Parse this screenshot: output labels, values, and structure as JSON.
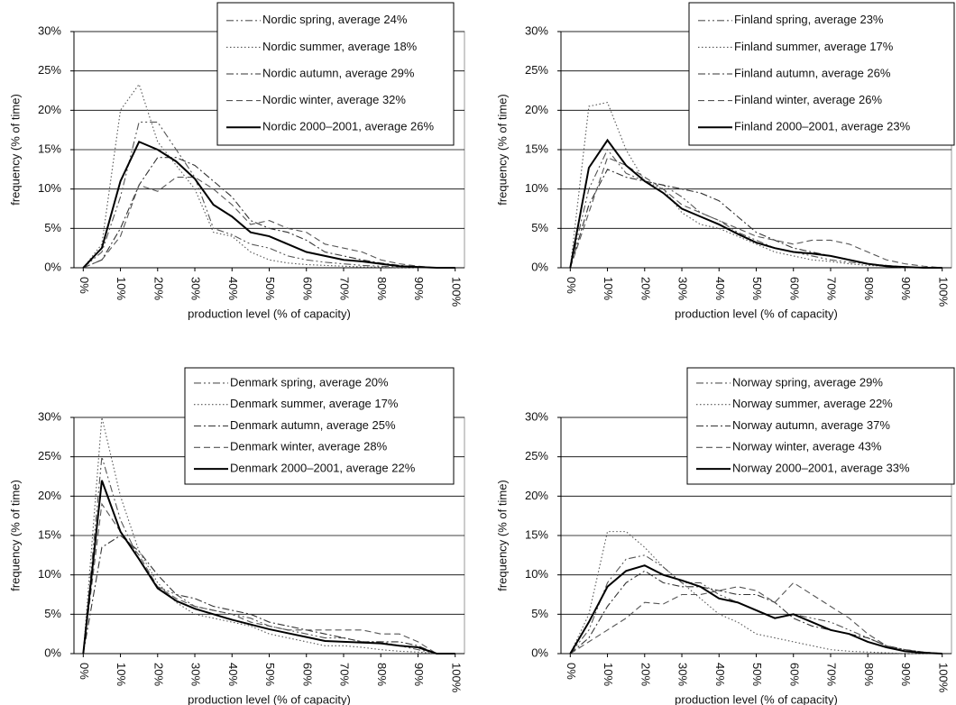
{
  "chart_data": [
    {
      "type": "line",
      "xlabel": "production level (% of capacity)",
      "ylabel": "frequency (% of time)",
      "x": [
        0,
        5,
        10,
        15,
        20,
        25,
        30,
        35,
        40,
        45,
        50,
        55,
        60,
        65,
        70,
        75,
        80,
        85,
        90,
        95,
        100
      ],
      "xlim": [
        -2.5,
        102.5
      ],
      "ylim": [
        0,
        30
      ],
      "grid": true,
      "legend": "upper right",
      "xticks": [
        {
          "value": 0,
          "label": "0%"
        },
        {
          "value": 10,
          "label": "10%"
        },
        {
          "value": 20,
          "label": "20%"
        },
        {
          "value": 30,
          "label": "30%"
        },
        {
          "value": 40,
          "label": "40%"
        },
        {
          "value": 50,
          "label": "50%"
        },
        {
          "value": 60,
          "label": "60%"
        },
        {
          "value": 70,
          "label": "70%"
        },
        {
          "value": 80,
          "label": "80%"
        },
        {
          "value": 90,
          "label": "90%"
        },
        {
          "value": 100,
          "label": "100%"
        }
      ],
      "yticks": [
        {
          "value": 0,
          "label": "0%"
        },
        {
          "value": 5,
          "label": "5%"
        },
        {
          "value": 10,
          "label": "10%"
        },
        {
          "value": 15,
          "label": "15%"
        },
        {
          "value": 20,
          "label": "20%"
        },
        {
          "value": 25,
          "label": "25%"
        },
        {
          "value": 30,
          "label": "30%"
        }
      ],
      "series": [
        {
          "name": "Nordic spring, average 24%",
          "color": "#555555",
          "linestyle": "dashdotdot",
          "values": [
            0,
            2,
            9,
            18.5,
            18.5,
            15,
            11.5,
            5,
            4.2,
            3,
            2.5,
            1.5,
            1,
            0.7,
            0.5,
            0.3,
            0.2,
            0.1,
            0,
            0,
            0
          ]
        },
        {
          "name": "Nordic summer, average 18%",
          "color": "#555555",
          "linestyle": "dotted",
          "values": [
            0,
            3,
            20,
            23.3,
            16,
            13,
            10,
            4.5,
            4,
            2,
            1,
            0.6,
            0.4,
            0.3,
            0.2,
            0.1,
            0.1,
            0,
            0,
            0,
            0
          ]
        },
        {
          "name": "Nordic autumn, average 29%",
          "color": "#333333",
          "linestyle": "dashdot",
          "values": [
            0,
            1,
            5,
            10.5,
            14,
            14,
            13,
            11,
            9,
            6,
            5,
            4.5,
            3.5,
            2,
            1.5,
            1,
            0.6,
            0.3,
            0.1,
            0,
            0
          ]
        },
        {
          "name": "Nordic winter, average 32%",
          "color": "#555555",
          "linestyle": "dashed",
          "values": [
            0,
            1,
            4,
            10.5,
            9.7,
            11.5,
            11.5,
            10,
            8,
            5.5,
            6,
            5,
            4.5,
            3,
            2.5,
            2,
            1,
            0.5,
            0.2,
            0,
            0
          ]
        },
        {
          "name": "Nordic 2000–2001, average 26%",
          "color": "#000000",
          "linestyle": "solid",
          "values": [
            0,
            2.5,
            11,
            16,
            15,
            13.5,
            11.3,
            8,
            6.5,
            4.5,
            4,
            3,
            2,
            1.5,
            1,
            0.8,
            0.5,
            0.2,
            0.1,
            0,
            0
          ]
        }
      ]
    },
    {
      "type": "line",
      "xlabel": "production level (% of capacity)",
      "ylabel": "frequency (% of time)",
      "x": [
        0,
        5,
        10,
        15,
        20,
        25,
        30,
        35,
        40,
        45,
        50,
        55,
        60,
        65,
        70,
        75,
        80,
        85,
        90,
        95,
        100
      ],
      "xlim": [
        -2.5,
        102.5
      ],
      "ylim": [
        0,
        30
      ],
      "grid": true,
      "legend": "upper right",
      "xticks": [
        {
          "value": 0,
          "label": "0%"
        },
        {
          "value": 10,
          "label": "10%"
        },
        {
          "value": 20,
          "label": "20%"
        },
        {
          "value": 30,
          "label": "30%"
        },
        {
          "value": 40,
          "label": "40%"
        },
        {
          "value": 50,
          "label": "50%"
        },
        {
          "value": 60,
          "label": "60%"
        },
        {
          "value": 70,
          "label": "70%"
        },
        {
          "value": 80,
          "label": "80%"
        },
        {
          "value": 90,
          "label": "90%"
        },
        {
          "value": 100,
          "label": "100%"
        }
      ],
      "yticks": [
        {
          "value": 0,
          "label": "0%"
        },
        {
          "value": 5,
          "label": "5%"
        },
        {
          "value": 10,
          "label": "10%"
        },
        {
          "value": 15,
          "label": "15%"
        },
        {
          "value": 20,
          "label": "20%"
        },
        {
          "value": 25,
          "label": "25%"
        },
        {
          "value": 30,
          "label": "30%"
        }
      ],
      "series": [
        {
          "name": "Finland spring, average 23%",
          "color": "#555555",
          "linestyle": "dashdotdot",
          "values": [
            0,
            10,
            15,
            12,
            11,
            10.5,
            9,
            7,
            6,
            4.5,
            3.5,
            2.5,
            2,
            1.5,
            1,
            0.7,
            0.5,
            0.3,
            0.1,
            0,
            0
          ]
        },
        {
          "name": "Finland summer, average 17%",
          "color": "#555555",
          "linestyle": "dotted",
          "values": [
            0,
            20.5,
            21,
            15,
            11,
            10,
            7,
            5.5,
            5,
            4,
            3,
            2,
            1.5,
            1,
            0.8,
            0.5,
            0.3,
            0.2,
            0,
            0,
            0
          ]
        },
        {
          "name": "Finland autumn, average 26%",
          "color": "#333333",
          "linestyle": "dashdot",
          "values": [
            0,
            8,
            12.5,
            11.5,
            11,
            10.5,
            10,
            9.5,
            8.5,
            6.5,
            4.5,
            3.5,
            2.5,
            2,
            1.5,
            1,
            0.5,
            0.3,
            0.1,
            0,
            0
          ]
        },
        {
          "name": "Finland winter, average 26%",
          "color": "#555555",
          "linestyle": "dashed",
          "values": [
            0,
            7,
            14,
            13,
            11.5,
            10,
            8,
            7,
            6,
            5,
            4,
            3.5,
            3,
            3.5,
            3.5,
            3,
            2,
            1,
            0.5,
            0.2,
            0
          ]
        },
        {
          "name": "Finland 2000–2001, average 23%",
          "color": "#000000",
          "linestyle": "solid",
          "values": [
            0,
            12.7,
            16.2,
            13,
            11,
            9.5,
            7.5,
            6.5,
            5.5,
            4.3,
            3.2,
            2.5,
            2,
            1.8,
            1.5,
            1,
            0.5,
            0.2,
            0.1,
            0,
            0
          ]
        }
      ]
    },
    {
      "type": "line",
      "xlabel": "production level (% of capacity)",
      "ylabel": "frequency (% of time)",
      "x": [
        0,
        5,
        10,
        15,
        20,
        25,
        30,
        35,
        40,
        45,
        50,
        55,
        60,
        65,
        70,
        75,
        80,
        85,
        90,
        95,
        100
      ],
      "xlim": [
        -2.5,
        102.5
      ],
      "ylim": [
        0,
        30
      ],
      "grid": true,
      "legend": "upper right",
      "xticks": [
        {
          "value": 0,
          "label": "0%"
        },
        {
          "value": 10,
          "label": "10%"
        },
        {
          "value": 20,
          "label": "20%"
        },
        {
          "value": 30,
          "label": "30%"
        },
        {
          "value": 40,
          "label": "40%"
        },
        {
          "value": 50,
          "label": "50%"
        },
        {
          "value": 60,
          "label": "60%"
        },
        {
          "value": 70,
          "label": "70%"
        },
        {
          "value": 80,
          "label": "80%"
        },
        {
          "value": 90,
          "label": "90%"
        },
        {
          "value": 100,
          "label": "100%"
        }
      ],
      "yticks": [
        {
          "value": 0,
          "label": "0%"
        },
        {
          "value": 5,
          "label": "5%"
        },
        {
          "value": 10,
          "label": "10%"
        },
        {
          "value": 15,
          "label": "15%"
        },
        {
          "value": 20,
          "label": "20%"
        },
        {
          "value": 25,
          "label": "25%"
        },
        {
          "value": 30,
          "label": "30%"
        }
      ],
      "series": [
        {
          "name": "Denmark spring, average 20%",
          "color": "#555555",
          "linestyle": "dashdotdot",
          "values": [
            0,
            25,
            17,
            12,
            8.5,
            7.5,
            6,
            5.5,
            5,
            4.5,
            3.5,
            3,
            2.5,
            2,
            2,
            1.5,
            1.5,
            1,
            0.5,
            0,
            0
          ]
        },
        {
          "name": "Denmark summer, average 17%",
          "color": "#555555",
          "linestyle": "dotted",
          "values": [
            0,
            30,
            20,
            13,
            9,
            6.5,
            5,
            4.5,
            4,
            3.5,
            2.5,
            2,
            1.5,
            1,
            1,
            0.8,
            0.5,
            0.3,
            0.2,
            0,
            0
          ]
        },
        {
          "name": "Denmark autumn, average 25%",
          "color": "#333333",
          "linestyle": "dashdot",
          "values": [
            0,
            13.5,
            15,
            13,
            10,
            7.5,
            7,
            6,
            5.5,
            5,
            4,
            3.5,
            3,
            2.5,
            2,
            1.5,
            1.5,
            1.5,
            1,
            0,
            0
          ]
        },
        {
          "name": "Denmark winter, average 28%",
          "color": "#555555",
          "linestyle": "dashed",
          "values": [
            0,
            19,
            15.5,
            12.5,
            8.5,
            7,
            6,
            5.5,
            5,
            4,
            3.5,
            3,
            3,
            3,
            3,
            3,
            2.5,
            2.5,
            1.5,
            0,
            0
          ]
        },
        {
          "name": "Denmark 2000–2001, average 22%",
          "color": "#000000",
          "linestyle": "solid",
          "values": [
            0,
            22,
            15.5,
            12,
            8.3,
            6.7,
            5.7,
            5,
            4.3,
            3.7,
            3.1,
            2.6,
            2.1,
            1.6,
            1.5,
            1.4,
            1.3,
            1,
            0.8,
            0,
            0
          ]
        }
      ]
    },
    {
      "type": "line",
      "xlabel": "production level (% of capacity)",
      "ylabel": "frequency (% of time)",
      "x": [
        0,
        5,
        10,
        15,
        20,
        25,
        30,
        35,
        40,
        45,
        50,
        55,
        60,
        65,
        70,
        75,
        80,
        85,
        90,
        95,
        100
      ],
      "xlim": [
        -2.5,
        102.5
      ],
      "ylim": [
        0,
        30
      ],
      "grid": true,
      "legend": "upper right",
      "xticks": [
        {
          "value": 0,
          "label": "0%"
        },
        {
          "value": 10,
          "label": "10%"
        },
        {
          "value": 20,
          "label": "20%"
        },
        {
          "value": 30,
          "label": "30%"
        },
        {
          "value": 40,
          "label": "40%"
        },
        {
          "value": 50,
          "label": "50%"
        },
        {
          "value": 60,
          "label": "60%"
        },
        {
          "value": 70,
          "label": "70%"
        },
        {
          "value": 80,
          "label": "80%"
        },
        {
          "value": 90,
          "label": "90%"
        },
        {
          "value": 100,
          "label": "100%"
        }
      ],
      "yticks": [
        {
          "value": 0,
          "label": "0%"
        },
        {
          "value": 5,
          "label": "5%"
        },
        {
          "value": 10,
          "label": "10%"
        },
        {
          "value": 15,
          "label": "15%"
        },
        {
          "value": 20,
          "label": "20%"
        },
        {
          "value": 25,
          "label": "25%"
        },
        {
          "value": 30,
          "label": "30%"
        }
      ],
      "series": [
        {
          "name": "Norway spring, average 29%",
          "color": "#555555",
          "linestyle": "dashdotdot",
          "values": [
            0,
            3,
            9,
            12,
            12.5,
            11,
            9,
            9,
            7.5,
            6.5,
            5.5,
            4.5,
            5,
            4.5,
            4,
            3,
            2,
            1,
            0.5,
            0.2,
            0
          ]
        },
        {
          "name": "Norway summer, average 22%",
          "color": "#555555",
          "linestyle": "dotted",
          "values": [
            0,
            5,
            15.5,
            15.5,
            13.5,
            11,
            9,
            7,
            5,
            4,
            2.5,
            2,
            1.5,
            1,
            0.5,
            0.3,
            0.2,
            0.1,
            0,
            0,
            0
          ]
        },
        {
          "name": "Norway autumn, average 37%",
          "color": "#333333",
          "linestyle": "dashdot",
          "values": [
            0,
            2,
            6,
            9,
            10.5,
            9,
            8.5,
            8.5,
            8,
            7.5,
            7.5,
            6.5,
            4.5,
            3.5,
            3,
            2.5,
            2,
            1,
            0.5,
            0.2,
            0
          ]
        },
        {
          "name": "Norway winter, average 43%",
          "color": "#555555",
          "linestyle": "dashed",
          "values": [
            0,
            1.5,
            3,
            4.5,
            6.5,
            6.3,
            7.5,
            7.5,
            8,
            8.5,
            8,
            6.5,
            9,
            7.5,
            6,
            4.5,
            2.5,
            1,
            0.3,
            0.1,
            0
          ]
        },
        {
          "name": "Norway 2000–2001, average 33%",
          "color": "#000000",
          "linestyle": "solid",
          "values": [
            0,
            4,
            8.5,
            10.5,
            11.2,
            10,
            9.3,
            8.5,
            7,
            6.5,
            5.5,
            4.5,
            5,
            4,
            3,
            2.5,
            1.5,
            0.8,
            0.3,
            0.1,
            0
          ]
        }
      ]
    }
  ]
}
